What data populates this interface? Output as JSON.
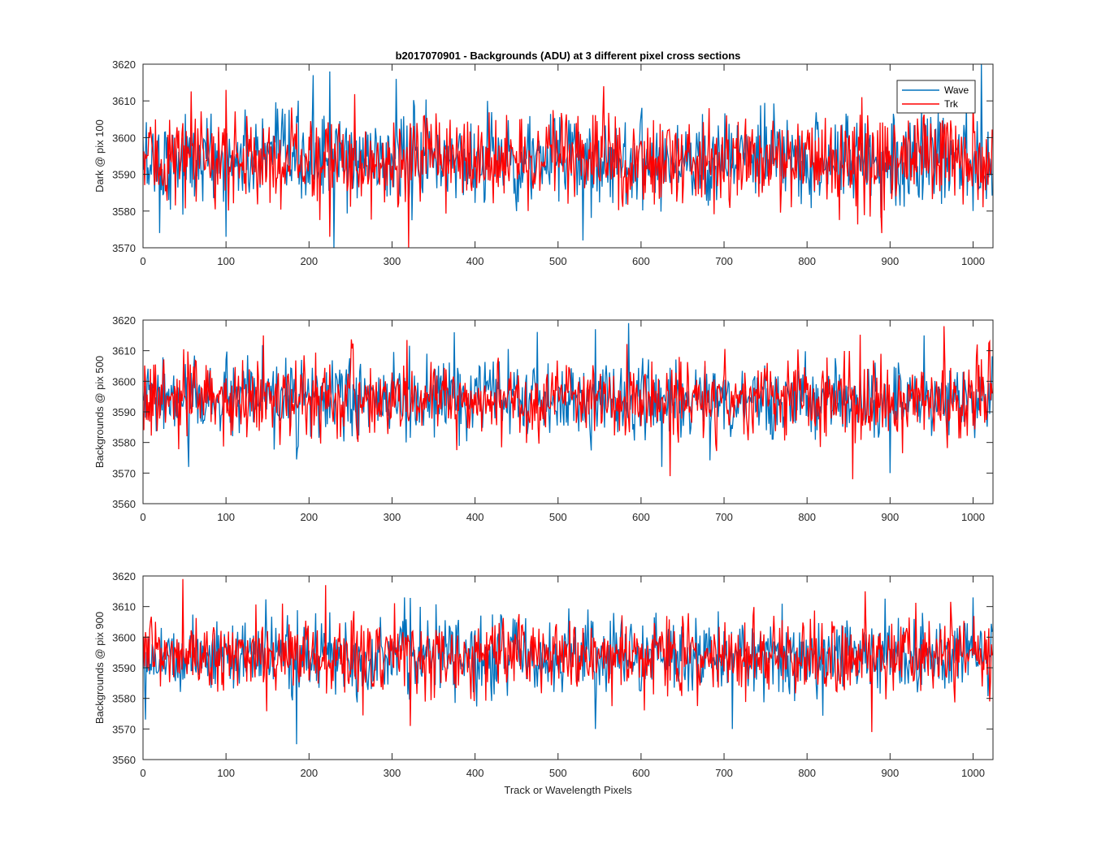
{
  "figure": {
    "title": "b2017070901 - Backgrounds (ADU) at 3 different pixel cross sections",
    "shared_xlabel": "Track or Wavelength Pixels"
  },
  "colors": {
    "wave": "#0072BD",
    "trk": "#FF0000",
    "axis": "#262626"
  },
  "chart_data": [
    {
      "type": "line",
      "title": "b2017070901 - Backgrounds (ADU) at 3 different pixel cross sections",
      "xlabel": "",
      "ylabel": "Dark @ pix 100",
      "xlim": [
        0,
        1024
      ],
      "ylim": [
        3570,
        3620
      ],
      "xticks": [
        0,
        100,
        200,
        300,
        400,
        500,
        600,
        700,
        800,
        900,
        1000
      ],
      "yticks": [
        3570,
        3580,
        3590,
        3600,
        3610,
        3620
      ],
      "legend": {
        "placement": "top-right",
        "entries": [
          "Wave",
          "Trk"
        ]
      },
      "series": [
        {
          "name": "Wave",
          "color": "#0072BD",
          "mean": 3594,
          "spread": 6,
          "x_points": 1024,
          "peaks": [
            [
              20,
              3574
            ],
            [
              100,
              3573
            ],
            [
              205,
              3617
            ],
            [
              225,
              3618
            ],
            [
              230,
              3570
            ],
            [
              305,
              3616
            ],
            [
              415,
              3610
            ],
            [
              530,
              3572
            ],
            [
              1000,
              3580
            ],
            [
              1010,
              3620
            ]
          ]
        },
        {
          "name": "Trk",
          "color": "#FF0000",
          "mean": 3594,
          "spread": 6,
          "x_points": 1024,
          "peaks": [
            [
              100,
              3613
            ],
            [
              225,
              3573
            ],
            [
              320,
              3570
            ],
            [
              555,
              3614
            ],
            [
              890,
              3574
            ],
            [
              1000,
              3610
            ]
          ]
        }
      ]
    },
    {
      "type": "line",
      "title": "",
      "xlabel": "",
      "ylabel": "Backgrounds @ pix 500",
      "xlim": [
        0,
        1024
      ],
      "ylim": [
        3560,
        3620
      ],
      "xticks": [
        0,
        100,
        200,
        300,
        400,
        500,
        600,
        700,
        800,
        900,
        1000
      ],
      "yticks": [
        3560,
        3570,
        3580,
        3590,
        3600,
        3610,
        3620
      ],
      "series": [
        {
          "name": "Wave",
          "color": "#0072BD",
          "mean": 3594,
          "spread": 6,
          "x_points": 1024,
          "peaks": [
            [
              55,
              3572
            ],
            [
              375,
              3616
            ],
            [
              545,
              3617
            ],
            [
              585,
              3619
            ],
            [
              625,
              3572
            ],
            [
              900,
              3570
            ]
          ]
        },
        {
          "name": "Trk",
          "color": "#FF0000",
          "mean": 3594,
          "spread": 6,
          "x_points": 1024,
          "peaks": [
            [
              145,
              3615
            ],
            [
              635,
              3569
            ],
            [
              855,
              3568
            ],
            [
              965,
              3618
            ],
            [
              1020,
              3613
            ]
          ]
        }
      ]
    },
    {
      "type": "line",
      "title": "",
      "xlabel": "Track or Wavelength Pixels",
      "ylabel": "Backgrounds @ pix 900",
      "xlim": [
        0,
        1024
      ],
      "ylim": [
        3560,
        3620
      ],
      "xticks": [
        0,
        100,
        200,
        300,
        400,
        500,
        600,
        700,
        800,
        900,
        1000
      ],
      "yticks": [
        3560,
        3570,
        3580,
        3590,
        3600,
        3610,
        3620
      ],
      "series": [
        {
          "name": "Wave",
          "color": "#0072BD",
          "mean": 3594,
          "spread": 6,
          "x_points": 1024,
          "peaks": [
            [
              185,
              3565
            ],
            [
              315,
              3613
            ],
            [
              545,
              3570
            ],
            [
              710,
              3570
            ],
            [
              1000,
              3613
            ]
          ]
        },
        {
          "name": "Trk",
          "color": "#FF0000",
          "mean": 3594,
          "spread": 6,
          "x_points": 1024,
          "peaks": [
            [
              48,
              3619
            ],
            [
              220,
              3617
            ],
            [
              322,
              3571
            ],
            [
              870,
              3615
            ],
            [
              878,
              3569
            ],
            [
              1020,
              3579
            ]
          ]
        }
      ]
    }
  ]
}
